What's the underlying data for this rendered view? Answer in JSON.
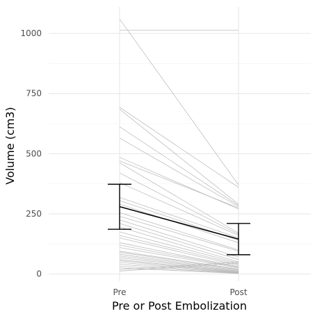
{
  "chart_data": {
    "type": "line",
    "title": "",
    "xlabel": "Pre or Post Embolization",
    "ylabel": "Volume (cm3)",
    "categories": [
      "Pre",
      "Post"
    ],
    "y_ticks": [
      0,
      250,
      500,
      750,
      1000
    ],
    "ylim": [
      -30,
      1110
    ],
    "grid": true,
    "legend": "none",
    "colors": {
      "individual": "#b3b3b3",
      "mean": "#000000",
      "grid_major": "#e6e6e6",
      "grid_minor": "#f2f2f2"
    },
    "series": [
      {
        "values": [
          1013,
          1013
        ]
      },
      {
        "values": [
          1060,
          370
        ]
      },
      {
        "values": [
          693,
          360
        ]
      },
      {
        "values": [
          685,
          290
        ]
      },
      {
        "values": [
          612,
          285
        ]
      },
      {
        "values": [
          565,
          280
        ]
      },
      {
        "values": [
          485,
          270
        ]
      },
      {
        "values": [
          470,
          275
        ]
      },
      {
        "values": [
          462,
          170
        ]
      },
      {
        "values": [
          420,
          165
        ]
      },
      {
        "values": [
          380,
          160
        ]
      },
      {
        "values": [
          318,
          150
        ]
      },
      {
        "values": [
          305,
          140
        ]
      },
      {
        "values": [
          290,
          130
        ]
      },
      {
        "values": [
          255,
          100
        ]
      },
      {
        "values": [
          240,
          95
        ]
      },
      {
        "values": [
          225,
          70
        ]
      },
      {
        "values": [
          210,
          60
        ]
      },
      {
        "values": [
          195,
          50
        ]
      },
      {
        "values": [
          175,
          45
        ]
      },
      {
        "values": [
          160,
          40
        ]
      },
      {
        "values": [
          150,
          35
        ]
      },
      {
        "values": [
          130,
          30
        ]
      },
      {
        "values": [
          120,
          28
        ]
      },
      {
        "values": [
          110,
          25
        ]
      },
      {
        "values": [
          95,
          20
        ]
      },
      {
        "values": [
          90,
          18
        ]
      },
      {
        "values": [
          82,
          15
        ]
      },
      {
        "values": [
          75,
          12
        ]
      },
      {
        "values": [
          68,
          10
        ]
      },
      {
        "values": [
          60,
          8
        ]
      },
      {
        "values": [
          55,
          6
        ]
      },
      {
        "values": [
          48,
          5
        ]
      },
      {
        "values": [
          40,
          4
        ]
      },
      {
        "values": [
          32,
          3
        ]
      },
      {
        "values": [
          25,
          2
        ]
      },
      {
        "values": [
          18,
          50
        ]
      },
      {
        "values": [
          12,
          45
        ]
      }
    ],
    "mean": {
      "values": [
        280,
        145
      ],
      "error_low": [
        186,
        80
      ],
      "error_high": [
        373,
        210
      ]
    }
  }
}
